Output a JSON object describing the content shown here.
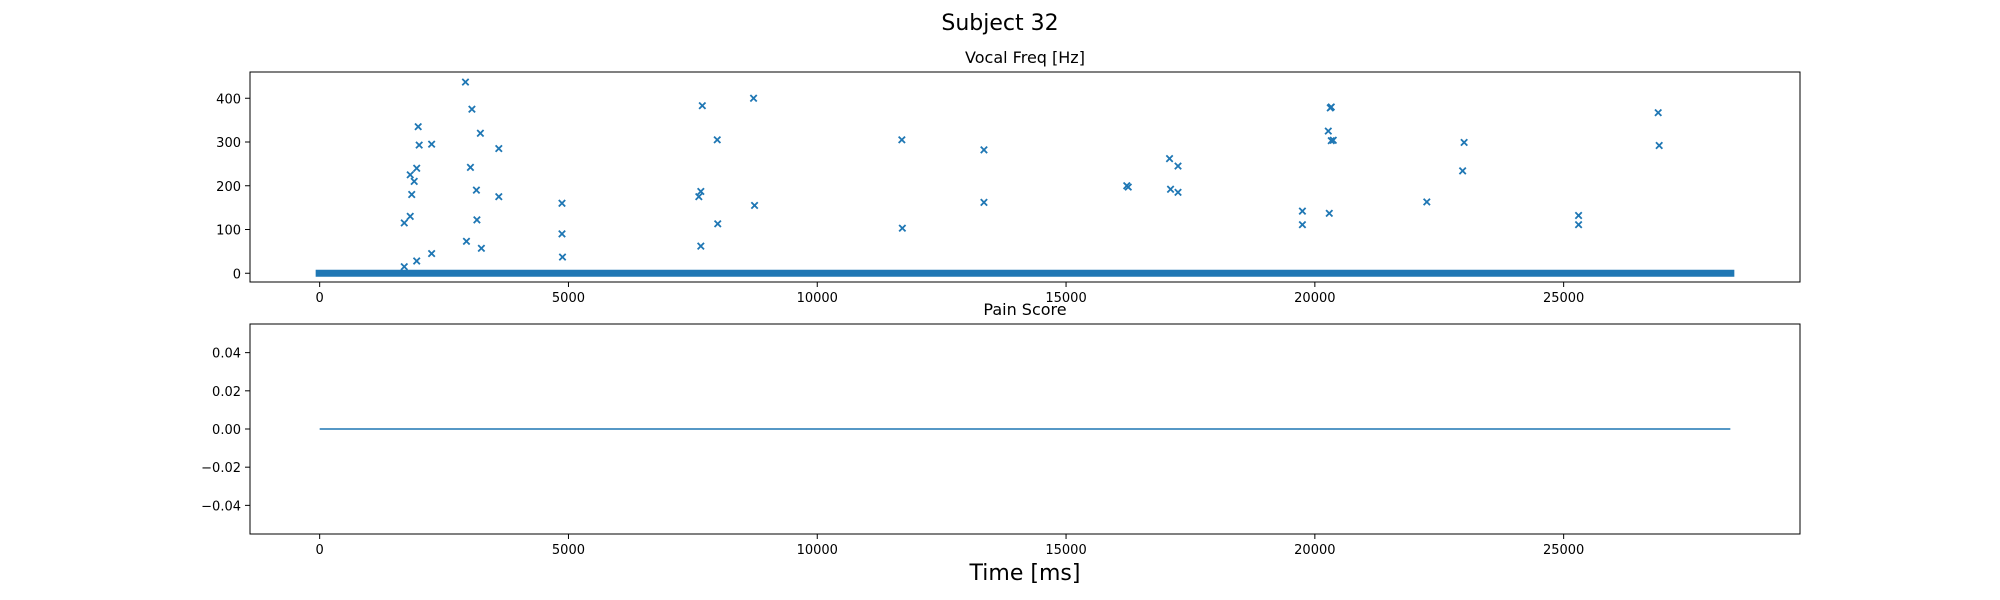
{
  "figure": {
    "title": "Subject 32",
    "xlabel": "Time [ms]"
  },
  "chart_data": [
    {
      "type": "scatter",
      "title": "Vocal Freq [Hz]",
      "xlabel": "",
      "ylabel": "",
      "xlim": [
        -1400,
        29750
      ],
      "ylim": [
        -20,
        460
      ],
      "xticks": [
        0,
        5000,
        10000,
        15000,
        20000,
        25000
      ],
      "xtick_labels": [
        "0",
        "5000",
        "10000",
        "15000",
        "20000",
        "25000"
      ],
      "yticks": [
        0,
        100,
        200,
        300,
        400
      ],
      "ytick_labels": [
        "0",
        "100",
        "200",
        "300",
        "400"
      ],
      "grid": false,
      "marker": "x",
      "color": "#1f77b4",
      "baseline": {
        "y": 0,
        "x_start": 0,
        "x_end": 28350,
        "note_visible": "dense row of zero-valued points"
      },
      "points": [
        [
          1700,
          115
        ],
        [
          1700,
          15
        ],
        [
          1820,
          225
        ],
        [
          1820,
          130
        ],
        [
          1850,
          180
        ],
        [
          1900,
          210
        ],
        [
          1950,
          240
        ],
        [
          1950,
          28
        ],
        [
          1980,
          335
        ],
        [
          2000,
          293
        ],
        [
          2250,
          295
        ],
        [
          2250,
          45
        ],
        [
          2930,
          437
        ],
        [
          2950,
          73
        ],
        [
          3030,
          242
        ],
        [
          3060,
          375
        ],
        [
          3150,
          190
        ],
        [
          3160,
          122
        ],
        [
          3230,
          320
        ],
        [
          3250,
          57
        ],
        [
          3600,
          285
        ],
        [
          3600,
          175
        ],
        [
          4870,
          160
        ],
        [
          4870,
          90
        ],
        [
          4880,
          37
        ],
        [
          7620,
          175
        ],
        [
          7660,
          187
        ],
        [
          7660,
          62
        ],
        [
          7690,
          383
        ],
        [
          7990,
          305
        ],
        [
          8000,
          113
        ],
        [
          8720,
          400
        ],
        [
          8740,
          155
        ],
        [
          11700,
          305
        ],
        [
          11710,
          103
        ],
        [
          13350,
          282
        ],
        [
          13350,
          162
        ],
        [
          16220,
          200
        ],
        [
          16250,
          197
        ],
        [
          17080,
          262
        ],
        [
          17100,
          192
        ],
        [
          17250,
          245
        ],
        [
          17250,
          185
        ],
        [
          19750,
          142
        ],
        [
          19750,
          111
        ],
        [
          20270,
          325
        ],
        [
          20290,
          137
        ],
        [
          20310,
          378
        ],
        [
          20330,
          380
        ],
        [
          20330,
          303
        ],
        [
          20370,
          304
        ],
        [
          22250,
          163
        ],
        [
          22970,
          234
        ],
        [
          23000,
          299
        ],
        [
          25300,
          132
        ],
        [
          25300,
          111
        ],
        [
          26900,
          367
        ],
        [
          26920,
          292
        ]
      ]
    },
    {
      "type": "line",
      "title": "Pain Score",
      "xlabel": "Time [ms]",
      "ylabel": "",
      "xlim": [
        -1400,
        29750
      ],
      "ylim": [
        -0.055,
        0.055
      ],
      "xticks": [
        0,
        5000,
        10000,
        15000,
        20000,
        25000
      ],
      "xtick_labels": [
        "0",
        "5000",
        "10000",
        "15000",
        "20000",
        "25000"
      ],
      "yticks": [
        0.04,
        0.02,
        0.0,
        -0.02,
        -0.04
      ],
      "ytick_labels": [
        "0.04",
        "0.02",
        "0.00",
        "−0.02",
        "−0.04"
      ],
      "grid": false,
      "color": "#1f77b4",
      "series": [
        {
          "x": [
            0,
            28350
          ],
          "y": [
            0,
            0
          ]
        }
      ]
    }
  ]
}
